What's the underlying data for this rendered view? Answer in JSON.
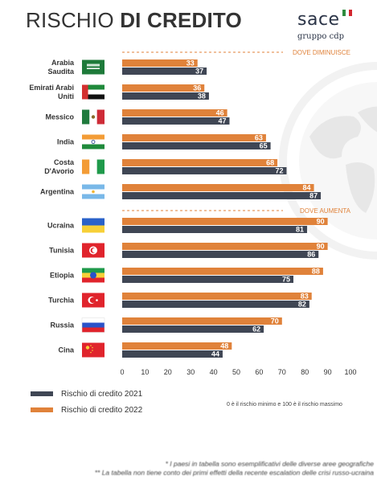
{
  "header": {
    "title_light": "RISCHIO",
    "title_bold": "DI CREDITO",
    "logo_word": "sace",
    "logo_sub": "gruppo cdp"
  },
  "colors": {
    "series_2021": "#3f4654",
    "series_2022": "#e0823a",
    "section_label": "#e0823a",
    "axis_text": "#333333"
  },
  "chart_data": {
    "type": "bar",
    "orientation": "horizontal",
    "xlim": [
      0,
      100
    ],
    "x_ticks": [
      0,
      10,
      20,
      30,
      40,
      50,
      60,
      70,
      80,
      90,
      100
    ],
    "grid": false,
    "legend_position": "bottom-left",
    "sections": [
      {
        "label": "DOVE DIMINUISCE",
        "countries": [
          {
            "name_lines": [
              "Arabia",
              "Saudita"
            ],
            "flag": "saudi-arabia",
            "v2022": 33,
            "v2021": 37
          },
          {
            "name_lines": [
              "Emirati Arabi",
              "Uniti"
            ],
            "flag": "uae",
            "v2022": 36,
            "v2021": 38
          },
          {
            "name_lines": [
              "Messico"
            ],
            "flag": "mexico",
            "v2022": 46,
            "v2021": 47
          },
          {
            "name_lines": [
              "India"
            ],
            "flag": "india",
            "v2022": 63,
            "v2021": 65
          },
          {
            "name_lines": [
              "Costa",
              "D'Avorio"
            ],
            "flag": "ivory-coast",
            "v2022": 68,
            "v2021": 72
          },
          {
            "name_lines": [
              "Argentina"
            ],
            "flag": "argentina",
            "v2022": 84,
            "v2021": 87
          }
        ]
      },
      {
        "label": "DOVE AUMENTA",
        "countries": [
          {
            "name_lines": [
              "Ucraina"
            ],
            "flag": "ukraine",
            "v2022": 90,
            "v2021": 81
          },
          {
            "name_lines": [
              "Tunisia"
            ],
            "flag": "tunisia",
            "v2022": 90,
            "v2021": 86
          },
          {
            "name_lines": [
              "Etiopia"
            ],
            "flag": "ethiopia",
            "v2022": 88,
            "v2021": 75
          },
          {
            "name_lines": [
              "Turchia"
            ],
            "flag": "turkey",
            "v2022": 83,
            "v2021": 82
          },
          {
            "name_lines": [
              "Russia"
            ],
            "flag": "russia",
            "v2022": 70,
            "v2021": 62
          },
          {
            "name_lines": [
              "Cina"
            ],
            "flag": "china",
            "v2022": 48,
            "v2021": 44
          }
        ]
      }
    ],
    "series": [
      {
        "name": "Rischio di credito 2021",
        "key": "v2021"
      },
      {
        "name": "Rischio di credito 2022",
        "key": "v2022"
      }
    ]
  },
  "legend": {
    "item_2021": "Rischio di credito 2021",
    "item_2022": "Rischio di credito 2022"
  },
  "scale_note": "0 è il rischio minimo e 100 è il rischio massimo",
  "footnotes": {
    "line1": "* I paesi in tabella sono esemplificativi delle diverse aree geografiche",
    "line2": "** La tabella non tiene conto dei primi effetti della recente escalation delle crisi russo-ucraina"
  }
}
